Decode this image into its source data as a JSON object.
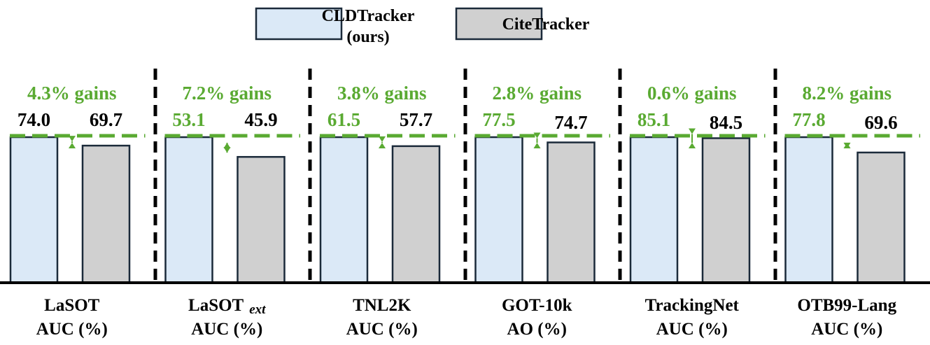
{
  "chart_data": {
    "type": "bar",
    "title": "",
    "legend": {
      "position": "top-center",
      "entries": [
        {
          "name_line1": "CLDTracker",
          "name_line2": "(ours)",
          "color": "#dbe9f7"
        },
        {
          "name_line1": "CiteTracker",
          "name_line2": "",
          "color": "#d0d0d0"
        }
      ]
    },
    "series_names": [
      "CLDTracker (ours)",
      "CiteTracker"
    ],
    "groups": [
      {
        "label_line1": "LaSOT",
        "label_sub": "",
        "label_line2": "AUC (%)",
        "ours": 74.0,
        "ours_label": "74.0",
        "cite": 69.7,
        "cite_label": "69.7",
        "gain_label": "4.3% gains"
      },
      {
        "label_line1": "LaSOT",
        "label_sub": "ext",
        "label_line2": "AUC (%)",
        "ours": 53.1,
        "ours_label": "53.1",
        "cite": 45.9,
        "cite_label": "45.9",
        "gain_label": "7.2% gains"
      },
      {
        "label_line1": "TNL2K",
        "label_sub": "",
        "label_line2": "AUC (%)",
        "ours": 61.5,
        "ours_label": "61.5",
        "cite": 57.7,
        "cite_label": "57.7",
        "gain_label": "3.8% gains"
      },
      {
        "label_line1": "GOT-10k",
        "label_sub": "",
        "label_line2": "AO (%)",
        "ours": 77.5,
        "ours_label": "77.5",
        "cite": 74.7,
        "cite_label": "74.7",
        "gain_label": "2.8% gains"
      },
      {
        "label_line1": "TrackingNet",
        "label_sub": "",
        "label_line2": "AUC (%)",
        "ours": 85.1,
        "ours_label": "85.1",
        "cite": 84.5,
        "cite_label": "84.5",
        "gain_label": "0.6% gains"
      },
      {
        "label_line1": "OTB99-Lang",
        "label_sub": "",
        "label_line2": "AUC (%)",
        "ours": 77.8,
        "ours_label": "77.8",
        "cite": 69.6,
        "cite_label": "69.6",
        "gain_label": "8.2% gains"
      }
    ],
    "colors": {
      "ours_fill": "#dbe9f7",
      "cite_fill": "#d0d0d0",
      "bar_stroke": "#1b2a3a",
      "gain": "#5aaa32",
      "text": "#000000",
      "separator": "#000000",
      "axis": "#000000"
    },
    "grid": false,
    "note": "Bars in each group are normalized so CLDTracker height equals the group's reference line; CiteTracker is drawn relative to its value (ratio scale)."
  }
}
